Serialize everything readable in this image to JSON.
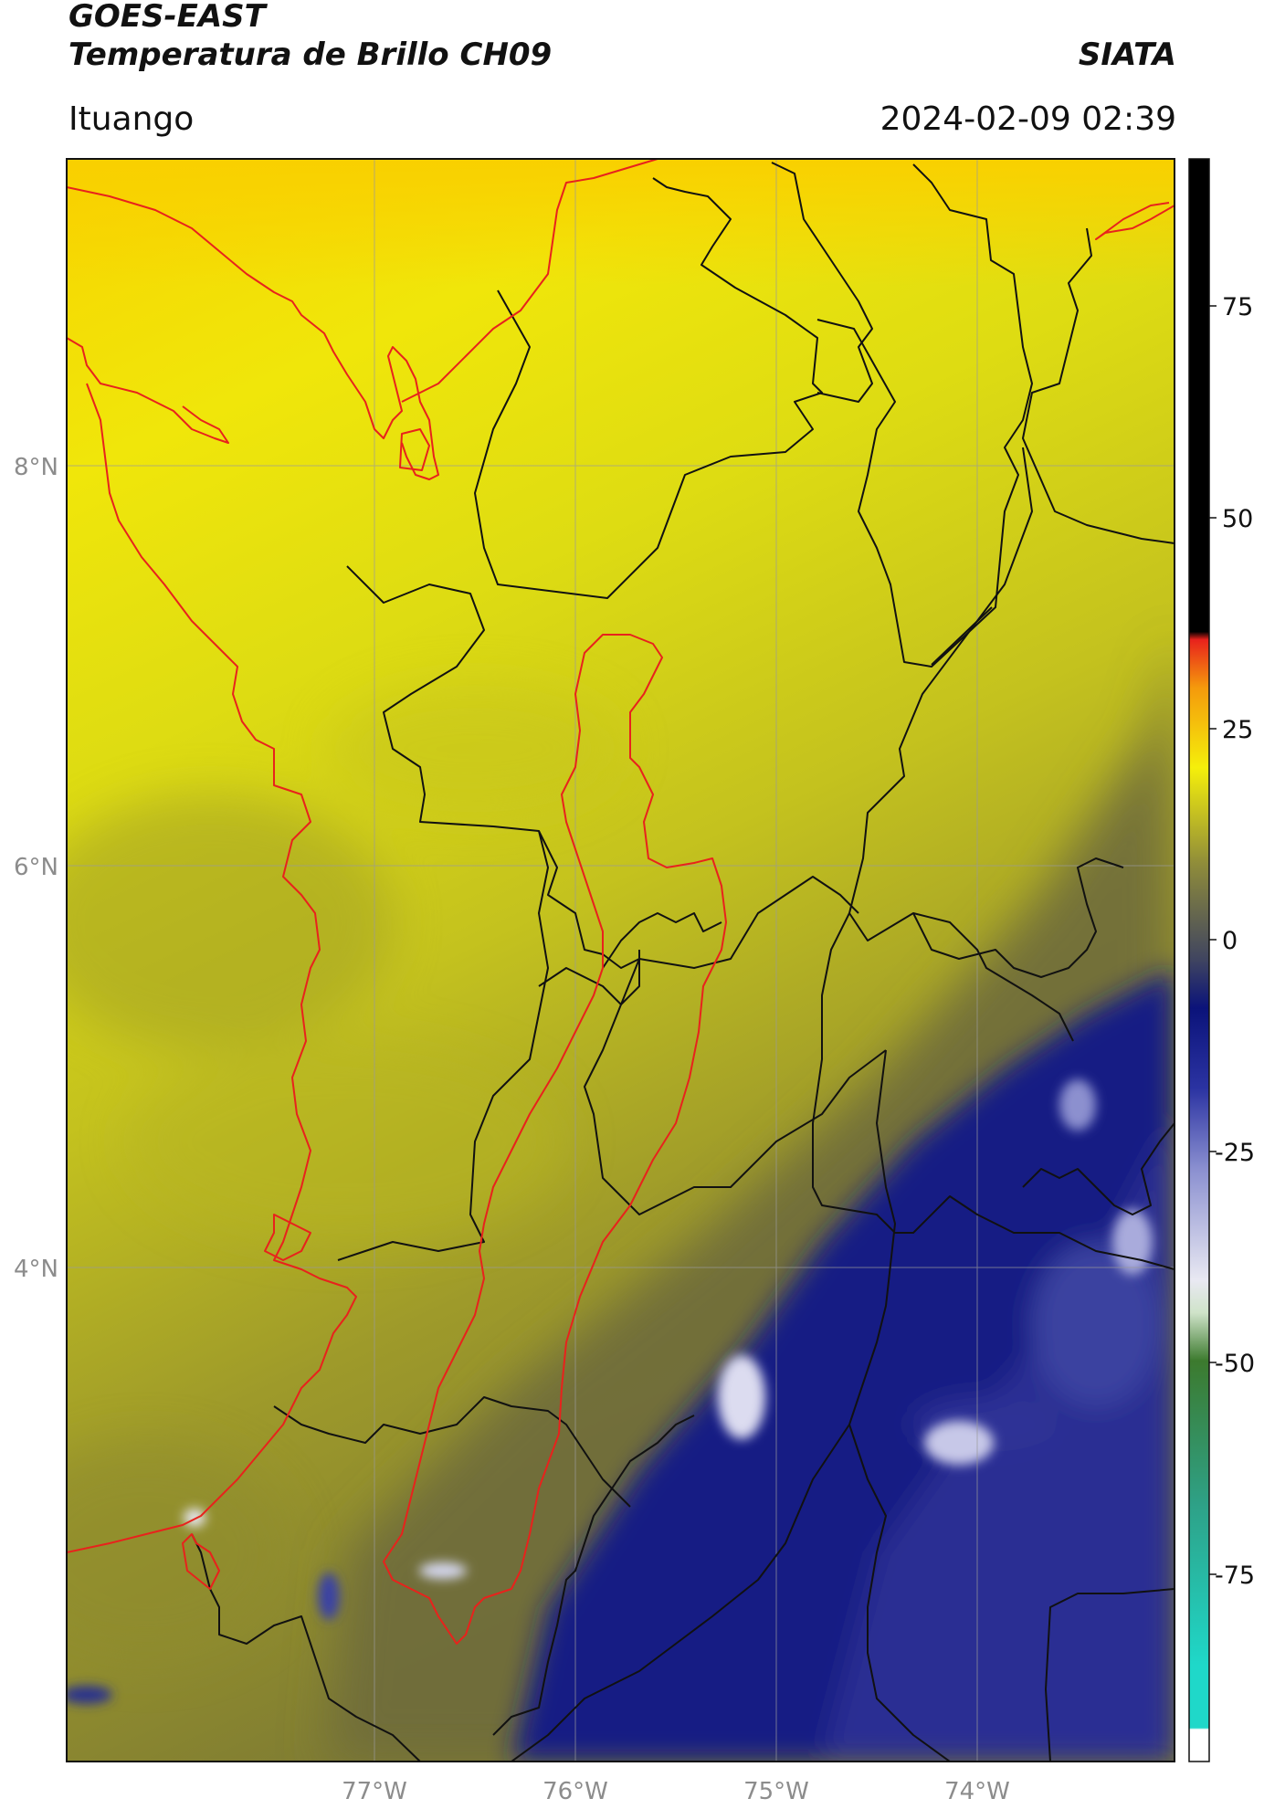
{
  "header": {
    "satellite": "GOES-EAST",
    "product": "Temperatura de Brillo CH09",
    "organization": "SIATA",
    "location": "Ituango",
    "timestamp": "2024-02-09 02:39"
  },
  "map": {
    "lat_labels": [
      "8°N",
      "6°N",
      "4°N"
    ],
    "lon_labels": [
      "77°W",
      "76°W",
      "75°W",
      "74°W"
    ],
    "colors": {
      "border_red": "#e8221c",
      "border_black": "#111111",
      "grid": "#9a9a9a"
    }
  },
  "colorbar": {
    "ticks": [
      "75",
      "50",
      "25",
      "0",
      "-25",
      "-50",
      "-75"
    ],
    "colors": [
      "#000000",
      "#e8221c",
      "#f59a0c",
      "#f5ef0b",
      "#6f6f37",
      "#0b137a",
      "#e9e9f2",
      "#3c7a2e",
      "#1fd8c9",
      "#ffffff"
    ]
  }
}
